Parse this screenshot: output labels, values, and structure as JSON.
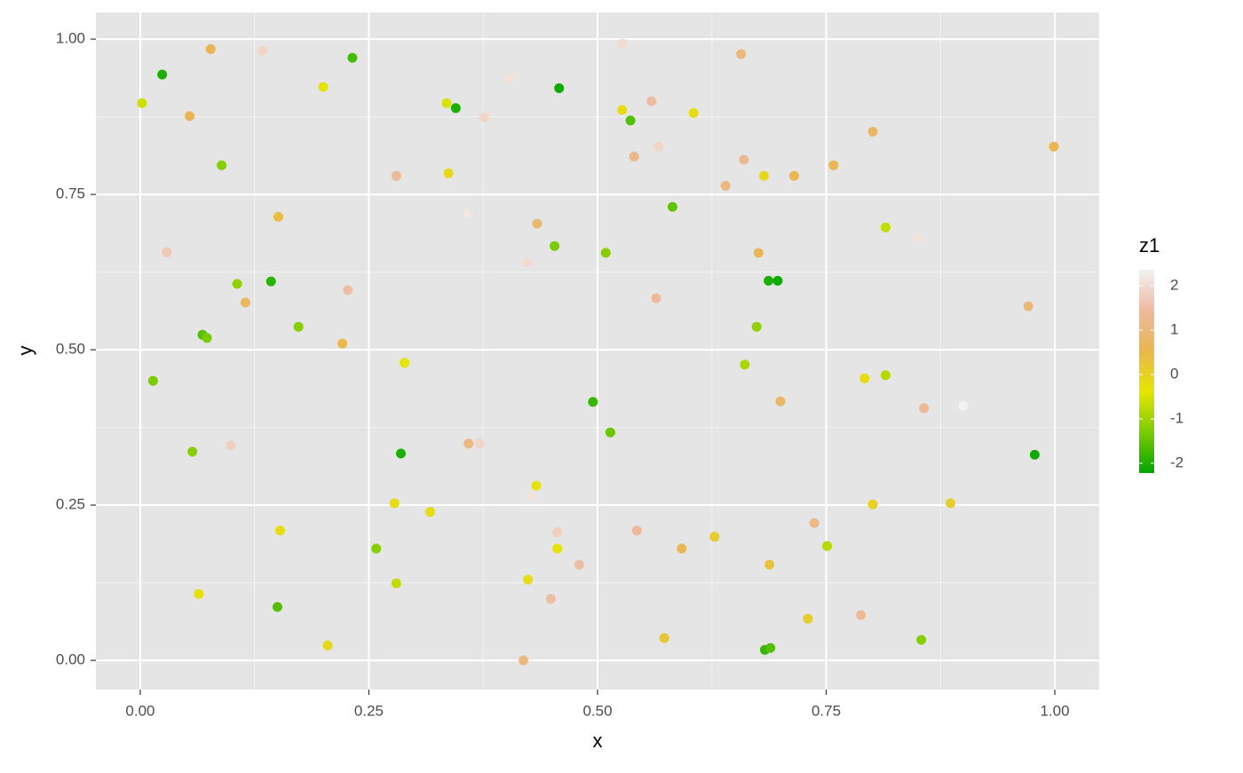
{
  "chart_data": {
    "type": "scatter",
    "x_label": "x",
    "y_label": "y",
    "xlim": [
      -0.0485,
      1.0485
    ],
    "ylim": [
      -0.047,
      1.043
    ],
    "xticks": [
      {
        "value": 0,
        "label": "0.00"
      },
      {
        "value": 0.25,
        "label": "0.25"
      },
      {
        "value": 0.5,
        "label": "0.50"
      },
      {
        "value": 0.75,
        "label": "0.75"
      },
      {
        "value": 1,
        "label": "1.00"
      }
    ],
    "yticks": [
      {
        "value": 0,
        "label": "0.00"
      },
      {
        "value": 0.25,
        "label": "0.25"
      },
      {
        "value": 0.5,
        "label": "0.50"
      },
      {
        "value": 0.75,
        "label": "0.75"
      },
      {
        "value": 1,
        "label": "1.00"
      }
    ],
    "grid": true,
    "colorscale": {
      "name": "z1",
      "colors": [
        "#00A600",
        "#7ACB00",
        "#E6E600",
        "#EAB64E",
        "#EEB99F",
        "#F2F2F2"
      ],
      "lim": [
        -2.22,
        2.36
      ],
      "ticks": [
        -2,
        -1,
        0,
        1,
        2
      ]
    },
    "x": [
      0.002,
      0.024,
      0.077,
      0.134,
      0.232,
      0.054,
      0.089,
      0.2,
      0.335,
      0.345,
      0.376,
      0.403,
      0.458,
      0.527,
      0.527,
      0.536,
      0.559,
      0.54,
      0.567,
      0.605,
      0.657,
      0.66,
      0.64,
      0.682,
      0.715,
      0.758,
      0.801,
      0.999,
      0.28,
      0.337,
      0.151,
      0.358,
      0.434,
      0.582,
      0.029,
      0.453,
      0.424,
      0.509,
      0.676,
      0.815,
      0.851,
      0.106,
      0.143,
      0.227,
      0.115,
      0.068,
      0.073,
      0.173,
      0.221,
      0.564,
      0.687,
      0.697,
      0.674,
      0.971,
      0.014,
      0.289,
      0.661,
      0.792,
      0.815,
      0.495,
      0.7,
      0.857,
      0.9,
      0.514,
      0.057,
      0.099,
      0.285,
      0.359,
      0.371,
      0.978,
      0.433,
      0.427,
      0.278,
      0.317,
      0.737,
      0.801,
      0.886,
      0.153,
      0.258,
      0.456,
      0.456,
      0.543,
      0.592,
      0.628,
      0.751,
      0.48,
      0.688,
      0.28,
      0.424,
      0.064,
      0.15,
      0.449,
      0.73,
      0.788,
      0.205,
      0.419,
      0.573,
      0.683,
      0.689,
      0.854
    ],
    "y": [
      0.897,
      0.943,
      0.984,
      0.981,
      0.97,
      0.876,
      0.797,
      0.923,
      0.897,
      0.889,
      0.874,
      0.937,
      0.921,
      0.993,
      0.886,
      0.869,
      0.9,
      0.811,
      0.827,
      0.881,
      0.976,
      0.806,
      0.764,
      0.78,
      0.78,
      0.797,
      0.851,
      0.827,
      0.78,
      0.784,
      0.714,
      0.72,
      0.703,
      0.73,
      0.657,
      0.667,
      0.641,
      0.656,
      0.656,
      0.697,
      0.68,
      0.606,
      0.61,
      0.596,
      0.576,
      0.524,
      0.519,
      0.537,
      0.51,
      0.583,
      0.611,
      0.611,
      0.537,
      0.57,
      0.45,
      0.479,
      0.476,
      0.454,
      0.459,
      0.416,
      0.417,
      0.406,
      0.41,
      0.367,
      0.336,
      0.346,
      0.333,
      0.349,
      0.349,
      0.331,
      0.281,
      0.264,
      0.253,
      0.239,
      0.221,
      0.251,
      0.253,
      0.209,
      0.18,
      0.206,
      0.18,
      0.209,
      0.18,
      0.199,
      0.184,
      0.154,
      0.154,
      0.124,
      0.13,
      0.107,
      0.086,
      0.099,
      0.067,
      0.073,
      0.024,
      0,
      0.036,
      0.017,
      0.02,
      0.033
    ],
    "z": [
      -0.6,
      -2,
      0.6,
      1.9,
      -1.7,
      0.6,
      -1.2,
      -0.3,
      -0.5,
      -2,
      1.9,
      2.1,
      -2.1,
      2,
      -0.2,
      -1.6,
      1.5,
      1.2,
      1.9,
      -0.2,
      1,
      1.3,
      1.1,
      -0.1,
      0.5,
      0.6,
      0.8,
      0.5,
      1.4,
      -0.1,
      0.4,
      2.2,
      0.9,
      -1.5,
      1.7,
      -1.3,
      2,
      -1.2,
      0.6,
      -0.7,
      2.1,
      -1.1,
      -1.9,
      1.5,
      0.7,
      -1.6,
      -1.3,
      -1.2,
      0.5,
      1.4,
      -2,
      -2.1,
      -1.1,
      1,
      -1.3,
      -0.4,
      -0.9,
      -0.2,
      -0.8,
      -1.8,
      0.8,
      1.3,
      2.4,
      -1.4,
      -1.2,
      1.8,
      -2,
      1.1,
      1.9,
      -2.1,
      -0.3,
      2.1,
      -0.2,
      -0.2,
      1.2,
      0,
      0.1,
      -0.2,
      -1.2,
      1.8,
      -0.3,
      1.4,
      0.6,
      0.1,
      -0.8,
      1.5,
      0.3,
      -0.7,
      -0.2,
      -0.3,
      -1.6,
      1.5,
      0.1,
      1.3,
      -0.1,
      1.1,
      0.2,
      -1.8,
      -1.6,
      -1.2
    ]
  }
}
